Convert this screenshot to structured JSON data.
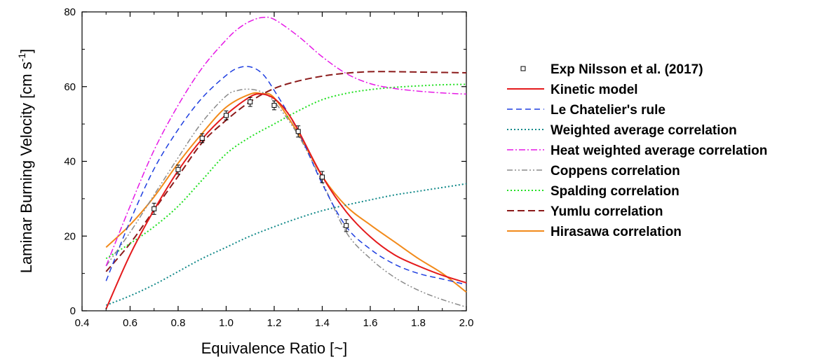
{
  "chart_data": {
    "type": "line",
    "xlabel": "Equivalence Ratio [~]",
    "ylabel": "Laminar Burning Velocity [cm s",
    "ylabel_sup": "-1",
    "ylabel_tail": "]",
    "xlim": [
      0.4,
      2.0
    ],
    "ylim": [
      0,
      80
    ],
    "xticks": [
      "0.4",
      "0.6",
      "0.8",
      "1.0",
      "1.2",
      "1.4",
      "1.6",
      "1.8",
      "2.0"
    ],
    "yticks": [
      "0",
      "20",
      "40",
      "60",
      "80"
    ],
    "grid": false,
    "legend_position": "right",
    "experimental": {
      "name": "Exp Nilsson et al. (2017)",
      "x": [
        0.7,
        0.8,
        0.9,
        1.0,
        1.1,
        1.2,
        1.3,
        1.4,
        1.5
      ],
      "y": [
        27.3,
        37.8,
        46.2,
        52.3,
        55.9,
        55.0,
        48.0,
        35.8,
        22.8
      ],
      "err": [
        1.5,
        1.2,
        1.2,
        1.2,
        1.2,
        1.2,
        1.5,
        1.5,
        1.6
      ]
    },
    "series": [
      {
        "name": "Kinetic model",
        "color": "#e41a1c",
        "dash": "",
        "width": 2,
        "x": [
          0.5,
          0.6,
          0.7,
          0.8,
          0.9,
          1.0,
          1.1,
          1.15,
          1.2,
          1.25,
          1.3,
          1.4,
          1.5,
          1.6,
          1.7,
          1.8,
          1.9,
          2.0
        ],
        "y": [
          0.5,
          15.0,
          27.0,
          37.5,
          46.0,
          52.5,
          57.3,
          58.0,
          56.8,
          53.5,
          48.3,
          36.0,
          26.5,
          19.8,
          15.0,
          12.0,
          9.5,
          7.5
        ]
      },
      {
        "name": "Le Chatelier's rule",
        "color": "#1f3fe0",
        "dash": "8,5",
        "width": 1.5,
        "x": [
          0.5,
          0.6,
          0.7,
          0.8,
          0.9,
          1.0,
          1.05,
          1.1,
          1.15,
          1.2,
          1.3,
          1.4,
          1.5,
          1.6,
          1.7,
          1.8,
          1.9,
          2.0
        ],
        "y": [
          8.0,
          24.0,
          38.0,
          48.5,
          57.0,
          63.0,
          65.0,
          65.3,
          63.5,
          59.0,
          48.0,
          34.0,
          22.5,
          16.5,
          12.5,
          10.0,
          8.5,
          7.0
        ]
      },
      {
        "name": "Weighted average correlation",
        "color": "#138a8a",
        "dash": "2,3",
        "width": 2,
        "x": [
          0.5,
          0.6,
          0.7,
          0.8,
          0.9,
          1.0,
          1.1,
          1.2,
          1.3,
          1.4,
          1.5,
          1.6,
          1.7,
          1.8,
          1.9,
          2.0
        ],
        "y": [
          1.5,
          4.0,
          7.0,
          10.5,
          14.0,
          17.0,
          20.0,
          22.5,
          24.8,
          26.8,
          28.3,
          29.7,
          31.0,
          32.0,
          33.0,
          34.0
        ]
      },
      {
        "name": "Heat weighted average correlation",
        "color": "#e619e6",
        "dash": "9,3,2,3",
        "width": 1.5,
        "x": [
          0.5,
          0.6,
          0.7,
          0.8,
          0.9,
          1.0,
          1.05,
          1.1,
          1.15,
          1.2,
          1.3,
          1.4,
          1.5,
          1.6,
          1.7,
          1.8,
          1.9,
          2.0
        ],
        "y": [
          12.0,
          28.0,
          43.0,
          55.0,
          65.0,
          72.5,
          75.5,
          77.5,
          78.5,
          78.0,
          73.5,
          68.0,
          63.5,
          60.8,
          59.5,
          58.8,
          58.3,
          58.0
        ]
      },
      {
        "name": "Coppens correlation",
        "color": "#8a8a8a",
        "dash": "8,3,2,3,2,3",
        "width": 1.5,
        "x": [
          0.5,
          0.6,
          0.7,
          0.8,
          0.9,
          1.0,
          1.05,
          1.1,
          1.15,
          1.2,
          1.3,
          1.4,
          1.5,
          1.6,
          1.7,
          1.8,
          1.9,
          2.0
        ],
        "y": [
          12.0,
          21.0,
          31.0,
          41.0,
          50.5,
          57.5,
          59.0,
          59.3,
          58.5,
          56.0,
          47.0,
          34.5,
          21.0,
          14.0,
          9.0,
          5.5,
          3.0,
          1.0
        ]
      },
      {
        "name": "Spalding correlation",
        "color": "#22e022",
        "dash": "2,3",
        "width": 2,
        "x": [
          0.5,
          0.6,
          0.7,
          0.8,
          0.9,
          1.0,
          1.1,
          1.2,
          1.3,
          1.4,
          1.5,
          1.6,
          1.7,
          1.8,
          1.9,
          2.0
        ],
        "y": [
          14.0,
          18.0,
          22.5,
          28.0,
          35.0,
          42.0,
          46.5,
          50.0,
          53.5,
          56.5,
          58.2,
          59.2,
          59.8,
          60.2,
          60.5,
          60.6
        ]
      },
      {
        "name": "Yumlu correlation",
        "color": "#8b1a1a",
        "dash": "10,5",
        "width": 2,
        "x": [
          0.5,
          0.6,
          0.7,
          0.8,
          0.9,
          1.0,
          1.1,
          1.2,
          1.3,
          1.4,
          1.5,
          1.6,
          1.7,
          1.8,
          1.9,
          2.0
        ],
        "y": [
          10.5,
          18.0,
          27.0,
          36.0,
          45.0,
          51.0,
          56.0,
          59.5,
          61.5,
          62.8,
          63.6,
          64.0,
          64.0,
          63.9,
          63.8,
          63.7
        ]
      },
      {
        "name": "Hirasawa correlation",
        "color": "#f28a1a",
        "dash": "",
        "width": 2,
        "x": [
          0.5,
          0.6,
          0.7,
          0.8,
          0.9,
          1.0,
          1.1,
          1.15,
          1.2,
          1.3,
          1.4,
          1.5,
          1.6,
          1.7,
          1.8,
          1.9,
          2.0
        ],
        "y": [
          17.0,
          23.0,
          30.5,
          39.5,
          47.5,
          54.5,
          58.0,
          58.1,
          57.0,
          47.5,
          36.0,
          28.0,
          23.0,
          18.5,
          14.0,
          10.0,
          5.0
        ]
      }
    ]
  }
}
